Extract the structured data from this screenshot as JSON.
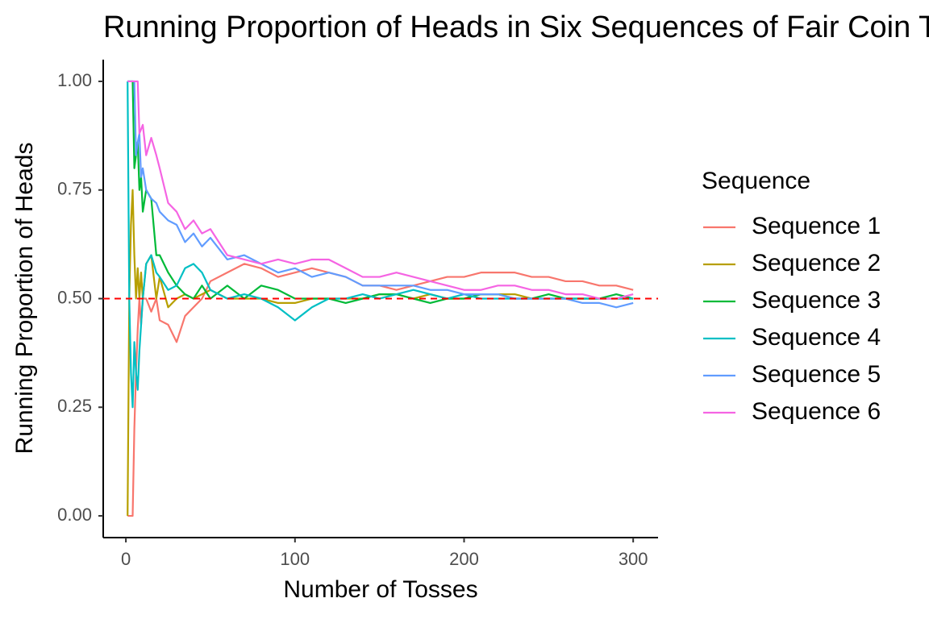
{
  "chart_data": {
    "type": "line",
    "title": "Running Proportion of Heads in Six Sequences of Fair Coin Tosses",
    "x_label": "Number of Tosses",
    "y_label": "Running Proportion of Heads",
    "legend_title": "Sequence",
    "legend_position": "right",
    "grid": false,
    "xlim": [
      -13.4,
      314.7
    ],
    "ylim": [
      -0.05,
      1.05
    ],
    "xticks": [
      0,
      100,
      200,
      300
    ],
    "yticks": [
      {
        "value": 0,
        "label": "0.00"
      },
      {
        "value": 0.25,
        "label": "0.25"
      },
      {
        "value": 0.5,
        "label": "0.50"
      },
      {
        "value": 0.75,
        "label": "0.75"
      },
      {
        "value": 1,
        "label": "1.00"
      }
    ],
    "reference_line": {
      "y": 0.5,
      "color": "#ff0000",
      "dashed": true
    },
    "x": [
      1,
      2,
      3,
      4,
      5,
      6,
      7,
      8,
      9,
      10,
      12,
      15,
      18,
      20,
      25,
      30,
      35,
      40,
      45,
      50,
      60,
      70,
      80,
      90,
      100,
      110,
      120,
      130,
      140,
      150,
      160,
      170,
      180,
      190,
      200,
      210,
      220,
      230,
      240,
      250,
      260,
      270,
      280,
      290,
      300
    ],
    "series": [
      {
        "name": "Sequence 1",
        "color": "#F8766D",
        "values": [
          0,
          0,
          0,
          0,
          0.2,
          0.33,
          0.43,
          0.5,
          0.44,
          0.5,
          0.5,
          0.47,
          0.5,
          0.45,
          0.44,
          0.4,
          0.46,
          0.48,
          0.5,
          0.54,
          0.56,
          0.58,
          0.57,
          0.55,
          0.56,
          0.57,
          0.56,
          0.55,
          0.53,
          0.53,
          0.52,
          0.53,
          0.54,
          0.55,
          0.55,
          0.56,
          0.56,
          0.56,
          0.55,
          0.55,
          0.54,
          0.54,
          0.53,
          0.53,
          0.52
        ]
      },
      {
        "name": "Sequence 2",
        "color": "#B79F00",
        "values": [
          0,
          0.5,
          0.67,
          0.75,
          0.6,
          0.5,
          0.57,
          0.5,
          0.56,
          0.5,
          0.58,
          0.6,
          0.5,
          0.55,
          0.48,
          0.5,
          0.51,
          0.5,
          0.51,
          0.52,
          0.5,
          0.5,
          0.5,
          0.49,
          0.49,
          0.5,
          0.5,
          0.5,
          0.5,
          0.51,
          0.51,
          0.5,
          0.51,
          0.5,
          0.5,
          0.51,
          0.51,
          0.51,
          0.5,
          0.5,
          0.5,
          0.5,
          0.5,
          0.5,
          0.5
        ]
      },
      {
        "name": "Sequence 3",
        "color": "#00BA38",
        "values": [
          1,
          1,
          1,
          1,
          0.8,
          0.83,
          0.86,
          0.75,
          0.78,
          0.7,
          0.75,
          0.73,
          0.6,
          0.6,
          0.56,
          0.53,
          0.51,
          0.5,
          0.53,
          0.5,
          0.53,
          0.5,
          0.53,
          0.52,
          0.5,
          0.5,
          0.5,
          0.49,
          0.5,
          0.51,
          0.51,
          0.5,
          0.49,
          0.5,
          0.5,
          0.51,
          0.51,
          0.5,
          0.5,
          0.51,
          0.5,
          0.5,
          0.5,
          0.51,
          0.5
        ]
      },
      {
        "name": "Sequence 4",
        "color": "#00BFC4",
        "values": [
          1,
          0.5,
          0.33,
          0.25,
          0.4,
          0.33,
          0.29,
          0.38,
          0.44,
          0.5,
          0.58,
          0.6,
          0.56,
          0.55,
          0.52,
          0.53,
          0.57,
          0.58,
          0.56,
          0.52,
          0.5,
          0.51,
          0.5,
          0.48,
          0.45,
          0.48,
          0.5,
          0.5,
          0.51,
          0.5,
          0.51,
          0.52,
          0.51,
          0.5,
          0.51,
          0.5,
          0.5,
          0.5,
          0.5,
          0.5,
          0.5,
          0.5,
          0.5,
          0.5,
          0.5
        ]
      },
      {
        "name": "Sequence 5",
        "color": "#619CFF",
        "values": [
          1,
          1,
          1,
          1,
          1,
          0.83,
          0.86,
          0.88,
          0.78,
          0.8,
          0.75,
          0.73,
          0.72,
          0.7,
          0.68,
          0.67,
          0.63,
          0.65,
          0.62,
          0.64,
          0.59,
          0.6,
          0.58,
          0.56,
          0.57,
          0.55,
          0.56,
          0.55,
          0.53,
          0.53,
          0.53,
          0.53,
          0.52,
          0.52,
          0.51,
          0.51,
          0.51,
          0.5,
          0.5,
          0.5,
          0.5,
          0.49,
          0.49,
          0.48,
          0.49
        ]
      },
      {
        "name": "Sequence 6",
        "color": "#F564E3",
        "values": [
          1,
          1,
          1,
          1,
          1,
          1,
          1,
          0.88,
          0.89,
          0.9,
          0.83,
          0.87,
          0.83,
          0.8,
          0.72,
          0.7,
          0.66,
          0.68,
          0.65,
          0.66,
          0.6,
          0.59,
          0.58,
          0.59,
          0.58,
          0.59,
          0.59,
          0.57,
          0.55,
          0.55,
          0.56,
          0.55,
          0.54,
          0.53,
          0.52,
          0.52,
          0.53,
          0.53,
          0.52,
          0.52,
          0.51,
          0.51,
          0.5,
          0.5,
          0.51
        ]
      }
    ]
  }
}
